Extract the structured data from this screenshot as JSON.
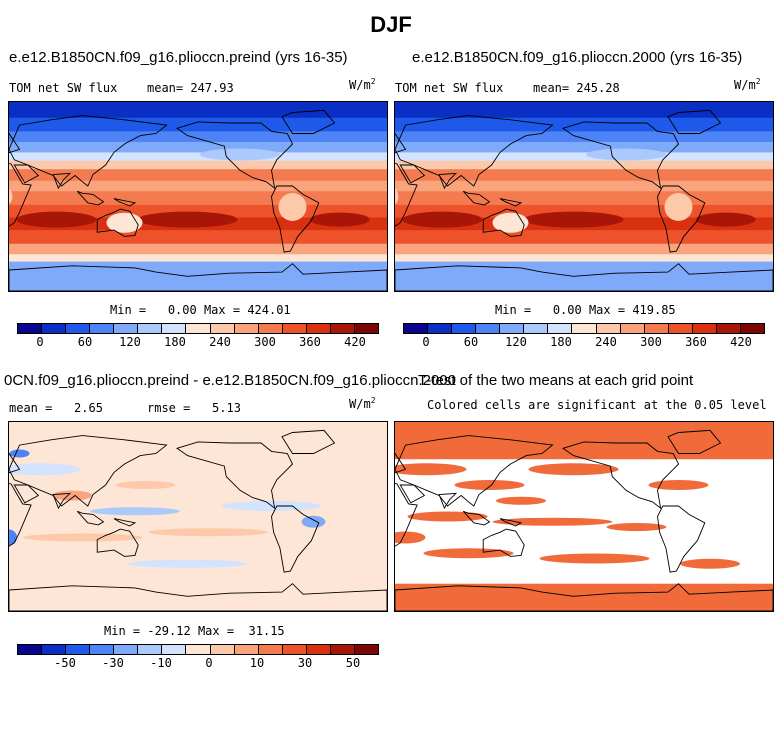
{
  "page": {
    "title": "DJF"
  },
  "colors": {
    "seq": [
      "#08068f",
      "#0a2fc4",
      "#1e59ea",
      "#4d83f5",
      "#7eaaf9",
      "#acc9fc",
      "#d3e2fd",
      "#fde6d5",
      "#fcc9ab",
      "#f9a47c",
      "#f47b50",
      "#ee522b",
      "#d9310f",
      "#a81607",
      "#7a0703"
    ],
    "div": [
      "#08068f",
      "#0a2fc4",
      "#1e59ea",
      "#4d83f5",
      "#7eaaf9",
      "#acc9fc",
      "#d3e2fd",
      "#fde6d5",
      "#fcc9ab",
      "#f9a47c",
      "#f47b50",
      "#ee522b",
      "#d9310f",
      "#a81607",
      "#7a0703"
    ],
    "sig": "#f06a3a"
  },
  "chart_data": [
    {
      "type": "heatmap",
      "title": "e.e12.B1850CN.f09_g16.plioccn.preind (yrs 16-35)",
      "variable": "TOM net SW flux",
      "mean_label": "mean=",
      "mean": "247.93",
      "units": "W/m",
      "units_exp": "2",
      "min_label": "Min =",
      "min": "0.00",
      "max_label": "Max =",
      "max": "424.01",
      "colorbar_ticks": [
        "0",
        "60",
        "120",
        "180",
        "240",
        "300",
        "360",
        "420"
      ]
    },
    {
      "type": "heatmap",
      "title": "e.e12.B1850CN.f09_g16.plioccn.2000 (yrs 16-35)",
      "variable": "TOM net SW flux",
      "mean_label": "mean=",
      "mean": "245.28",
      "units": "W/m",
      "units_exp": "2",
      "min_label": "Min =",
      "min": "0.00",
      "max_label": "Max =",
      "max": "419.85",
      "colorbar_ticks": [
        "0",
        "60",
        "120",
        "180",
        "240",
        "300",
        "360",
        "420"
      ]
    },
    {
      "type": "heatmap",
      "title": "0CN.f09_g16.plioccn.preind - e.e12.B1850CN.f09_g16.plioccn.2000",
      "mean_label": "mean =",
      "mean": "2.65",
      "rmse_label": "rmse =",
      "rmse": "5.13",
      "units": "W/m",
      "units_exp": "2",
      "min_label": "Min =",
      "min": "-29.12",
      "max_label": "Max =",
      "max": "31.15",
      "colorbar_ticks": [
        "-50",
        "-30",
        "-10",
        "0",
        "10",
        "30",
        "50"
      ]
    },
    {
      "type": "heatmap",
      "title": "T-test of the two means at each grid point",
      "subtitle": "Colored cells are significant at the 0.05 level"
    }
  ]
}
